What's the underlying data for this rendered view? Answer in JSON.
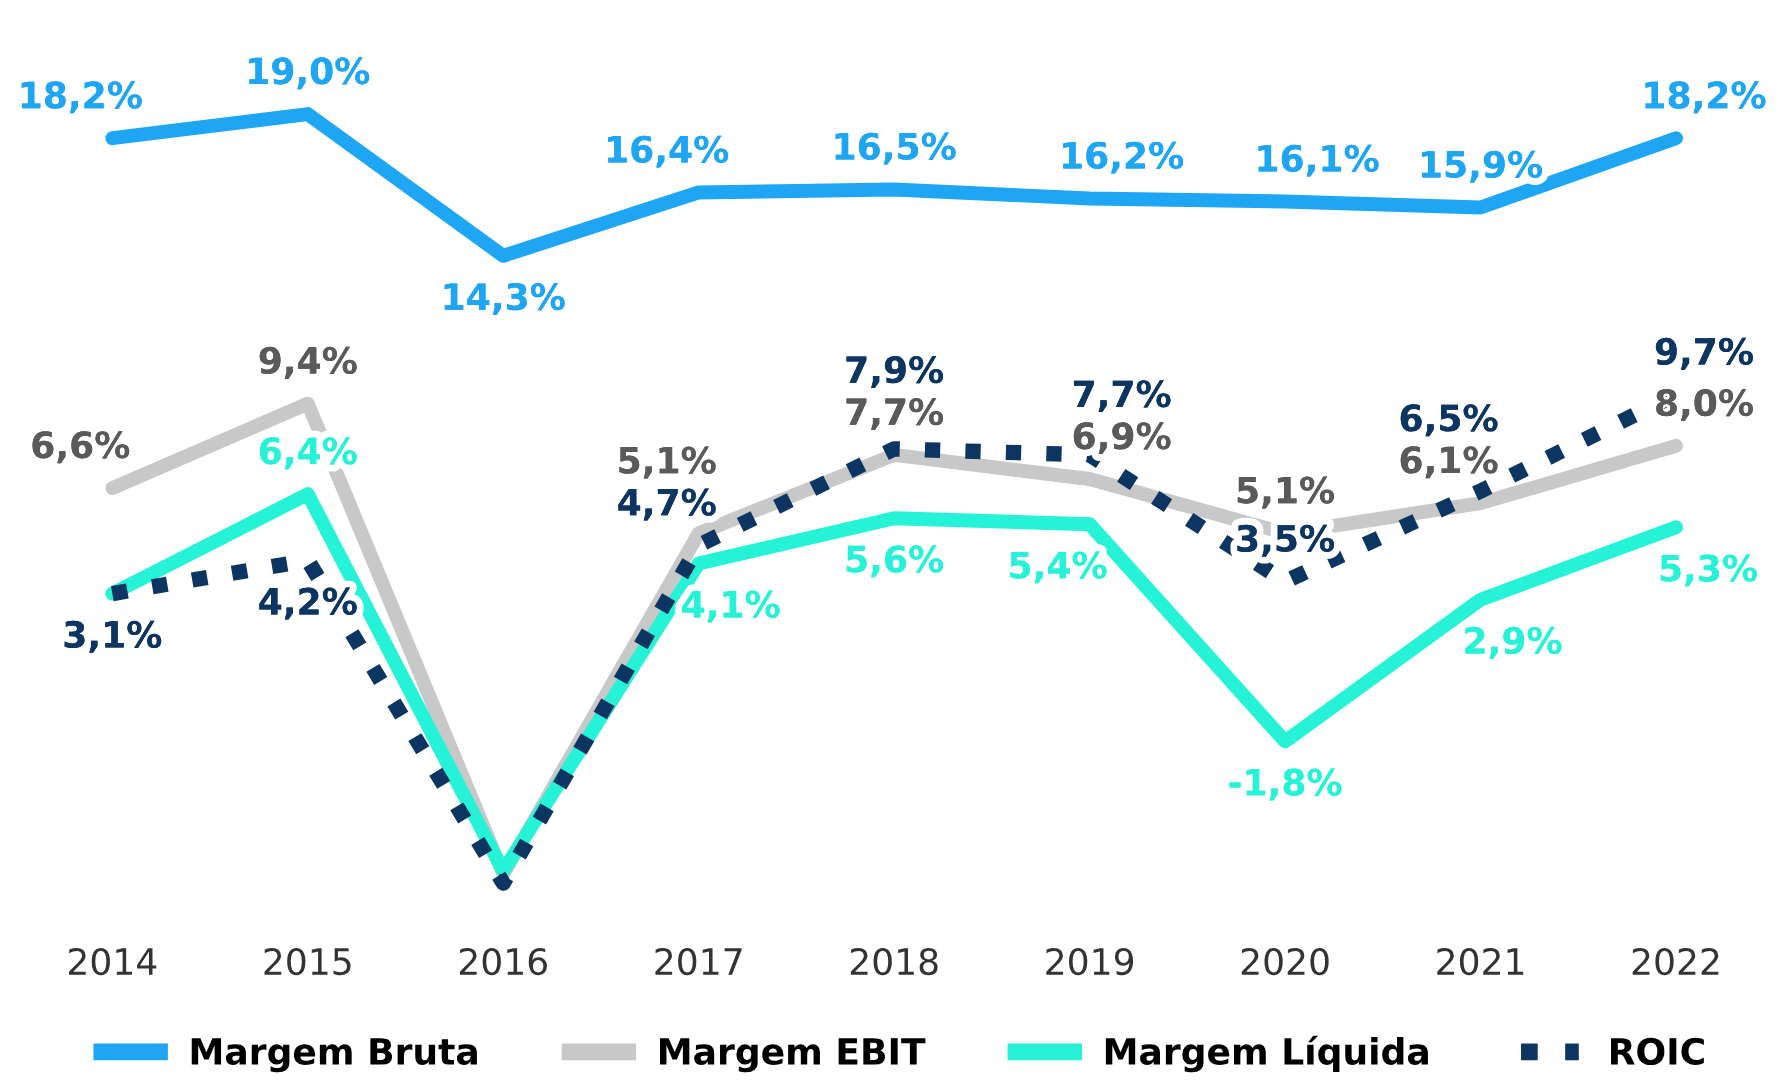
{
  "chart_data": {
    "type": "line",
    "categories": [
      "2014",
      "2015",
      "2016",
      "2017",
      "2018",
      "2019",
      "2020",
      "2021",
      "2022"
    ],
    "series": [
      {
        "name": "Margem Bruta",
        "color": "#1ea5f4",
        "line_style": "solid",
        "values": [
          18.2,
          19.0,
          14.3,
          16.4,
          16.5,
          16.2,
          16.1,
          15.9,
          18.2
        ],
        "value_labels": [
          "18,2%",
          "19,0%",
          "14,3%",
          "16,4%",
          "16,5%",
          "16,2%",
          "16,1%",
          "15,9%",
          "18,2%"
        ]
      },
      {
        "name": "Margem EBIT",
        "color": "#c8c8c8",
        "line_style": "solid",
        "values": [
          6.6,
          9.4,
          -6.2,
          5.1,
          7.7,
          6.9,
          5.1,
          6.1,
          8.0
        ],
        "value_labels": [
          "6,6%",
          "9,4%",
          null,
          "5,1%",
          "7,7%",
          "6,9%",
          "5,1%",
          "6,1%",
          "8,0%"
        ]
      },
      {
        "name": "Margem Líquida",
        "color": "#25f2d6",
        "line_style": "solid",
        "values": [
          3.1,
          6.4,
          -6.1,
          4.1,
          5.6,
          5.4,
          -1.8,
          2.9,
          5.3
        ],
        "value_labels": [
          null,
          "6,4%",
          null,
          "4,1%",
          "5,6%",
          "5,4%",
          "-1,8%",
          "2,9%",
          "5,3%"
        ]
      },
      {
        "name": "ROIC",
        "color": "#0d3561",
        "line_style": "dotted",
        "values": [
          3.1,
          4.2,
          -6.5,
          4.7,
          7.9,
          7.7,
          3.5,
          6.5,
          9.7
        ],
        "value_labels": [
          "3,1%",
          "4,2%",
          null,
          "4,7%",
          "7,9%",
          "7,7%",
          "3,5%",
          "6,5%",
          "9,7%"
        ]
      }
    ],
    "grid": false,
    "legend": "bottom",
    "marker": "none"
  }
}
